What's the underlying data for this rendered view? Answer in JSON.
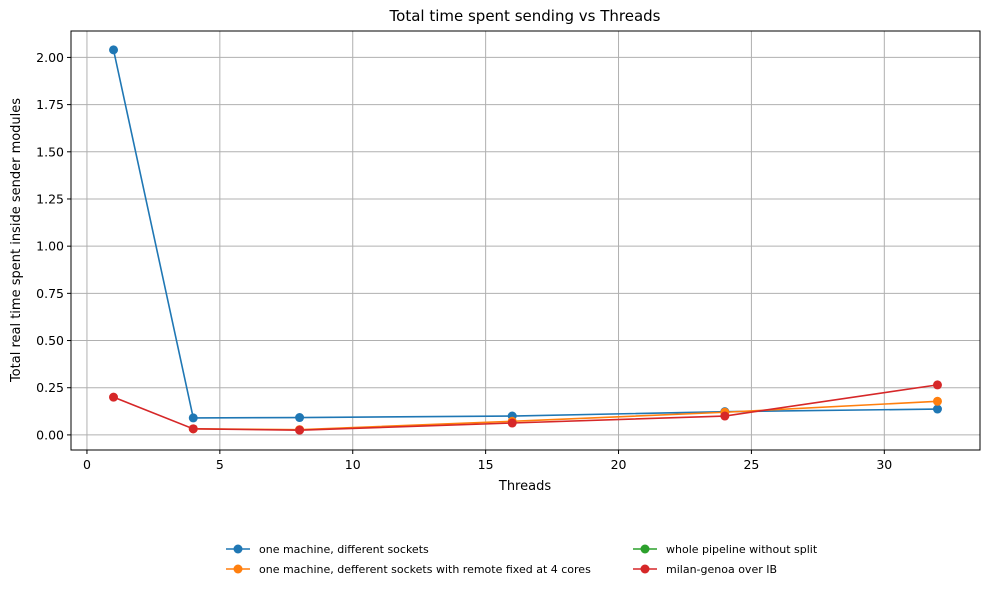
{
  "chart_data": {
    "type": "line",
    "title": "Total time spent sending vs Threads",
    "xlabel": "Threads",
    "ylabel": "Total real time spent inside sender modules",
    "xlim": [
      -0.6,
      33.6
    ],
    "ylim": [
      -0.08,
      2.14
    ],
    "xticks": [
      0,
      5,
      10,
      15,
      20,
      25,
      30
    ],
    "yticks": [
      0.0,
      0.25,
      0.5,
      0.75,
      1.0,
      1.25,
      1.5,
      1.75,
      2.0
    ],
    "ytick_labels": [
      "0.00",
      "0.25",
      "0.50",
      "0.75",
      "1.00",
      "1.25",
      "1.50",
      "1.75",
      "2.00"
    ],
    "grid": true,
    "legend_position": "bottom-center",
    "x": [
      1,
      4,
      8,
      16,
      24,
      32
    ],
    "series": [
      {
        "name": "one machine, different sockets",
        "color": "#1f77b4",
        "x": [
          1,
          4,
          8,
          16,
          24,
          32
        ],
        "values": [
          2.04,
          0.09,
          0.092,
          0.1,
          0.123,
          0.137
        ]
      },
      {
        "name": "one machine, defferent sockets with remote fixed at 4 cores",
        "color": "#ff7f0e",
        "x": [
          4,
          8,
          16,
          24,
          32
        ],
        "values": [
          0.032,
          0.028,
          0.072,
          0.12,
          0.178
        ]
      },
      {
        "name": "whole pipeline without split",
        "color": "#2ca02c",
        "x": [],
        "values": []
      },
      {
        "name": "milan-genoa over IB",
        "color": "#d62728",
        "x": [
          1,
          4,
          8,
          16,
          24,
          32
        ],
        "values": [
          0.2,
          0.032,
          0.025,
          0.063,
          0.1,
          0.265
        ]
      }
    ]
  }
}
